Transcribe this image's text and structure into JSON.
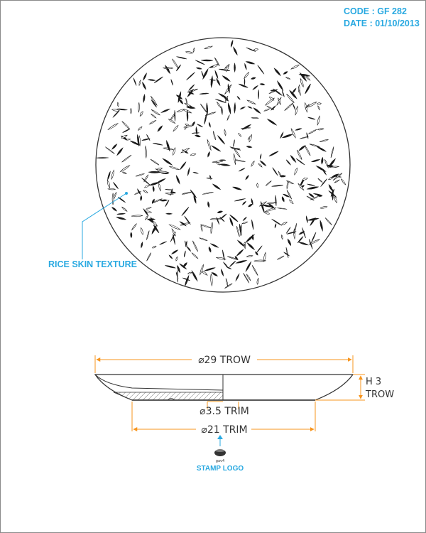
{
  "header": {
    "code": "CODE : GF 282",
    "date": "DATE : 01/10/2013"
  },
  "callouts": {
    "texture": "RICE SKIN TEXTURE",
    "stamp": "STAMP LOGO",
    "stamp_mark": "gav4"
  },
  "dimensions": {
    "top_diameter": "⌀29 TROW",
    "height_line1": "H 3",
    "height_line2": "TROW",
    "inner_diameter": "⌀3.5 TRIM",
    "base_diameter": "⌀21 TRIM"
  },
  "colors": {
    "accent": "#29a9e1",
    "dimension_line": "#f7941d",
    "drawing_line": "#333333"
  }
}
